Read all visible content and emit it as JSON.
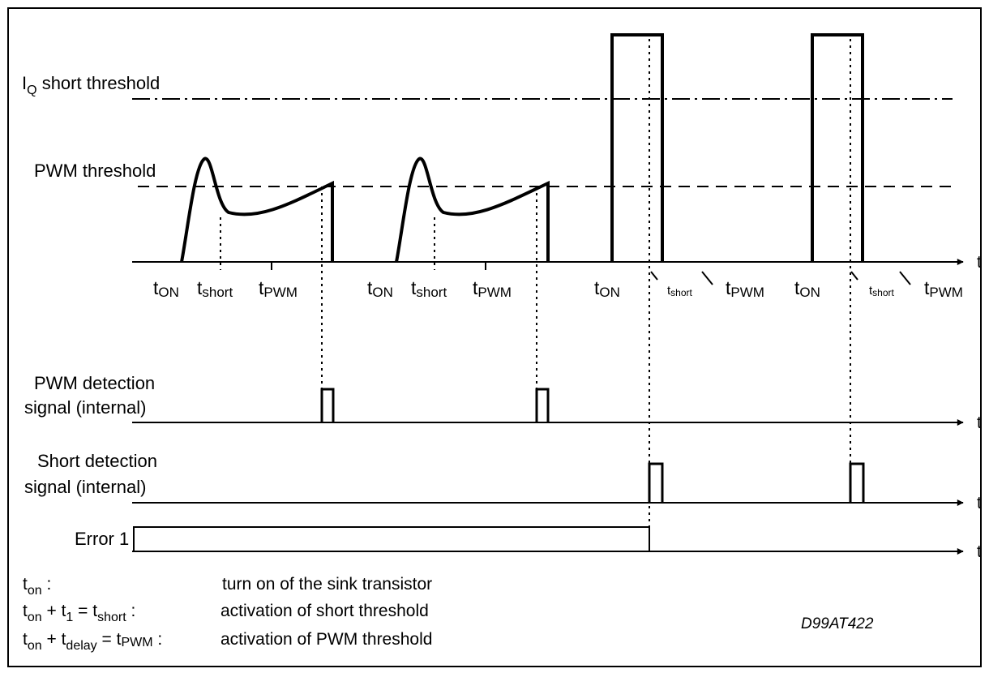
{
  "labels": {
    "iq_short_threshold": {
      "main": "I",
      "sub": "Q",
      "rest": " short threshold"
    },
    "pwm_threshold": "PWM threshold",
    "pwm_detection": [
      "PWM detection",
      "signal (internal)"
    ],
    "short_detection": [
      "Short detection",
      "signal (internal)"
    ],
    "error1": "Error 1",
    "time_axis": "t",
    "figure_code": "D99AT422"
  },
  "markers": {
    "t": "t",
    "on": "ON",
    "short": "short",
    "pwm": "PWM"
  },
  "legend": [
    {
      "lhs": [
        [
          "t",
          ""
        ],
        [
          "on",
          "sub"
        ],
        [
          " :",
          ""
        ]
      ],
      "desc": "turn on of the sink transistor"
    },
    {
      "lhs": [
        [
          "t",
          ""
        ],
        [
          "on",
          "sub"
        ],
        [
          " + t",
          ""
        ],
        [
          "1",
          "sub"
        ],
        [
          " = t",
          ""
        ],
        [
          "short",
          "sub"
        ],
        [
          " :",
          ""
        ]
      ],
      "desc": "activation of short threshold"
    },
    {
      "lhs": [
        [
          "t",
          ""
        ],
        [
          "on",
          "sub"
        ],
        [
          " + t",
          ""
        ],
        [
          "delay",
          "sub"
        ],
        [
          " = t",
          ""
        ],
        [
          "PWM",
          "sub"
        ],
        [
          " :",
          ""
        ]
      ],
      "desc": "activation of PWM threshold"
    }
  ]
}
